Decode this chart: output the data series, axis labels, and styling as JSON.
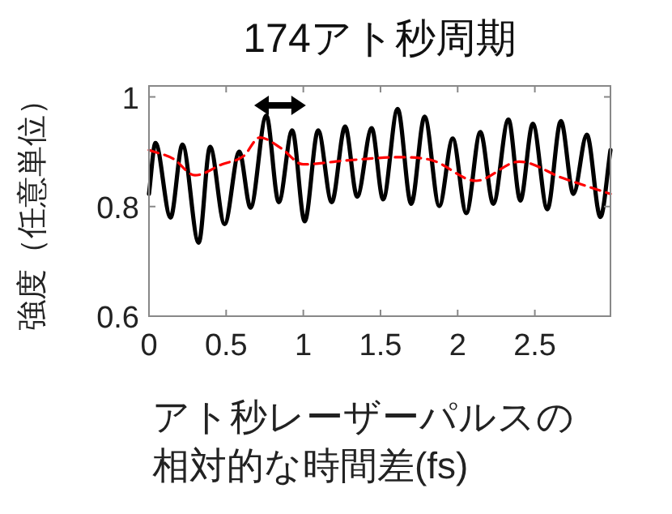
{
  "chart_data": {
    "type": "line",
    "title": "174アト秒周期",
    "xlabel": "アト秒レーザーパルスの相対的な時間差(fs)",
    "ylabel": "強度（任意単位）",
    "xlim": [
      0,
      2.99
    ],
    "ylim": [
      0.6,
      1.02
    ],
    "xticks": [
      0,
      0.5,
      1,
      1.5,
      2,
      2.5
    ],
    "yticks": [
      0.6,
      0.8,
      1
    ],
    "grid": false,
    "series": [
      {
        "color": "#000000",
        "line_style": "solid",
        "x": [
          0,
          0.042,
          0.14,
          0.217,
          0.322,
          0.396,
          0.49,
          0.585,
          0.658,
          0.76,
          0.841,
          0.928,
          1.009,
          1.096,
          1.184,
          1.271,
          1.349,
          1.443,
          1.517,
          1.611,
          1.699,
          1.786,
          1.881,
          1.968,
          2.056,
          2.147,
          2.231,
          2.329,
          2.406,
          2.487,
          2.581,
          2.669,
          2.75,
          2.837,
          2.925,
          2.99
        ],
        "values": [
          0.823,
          0.916,
          0.78,
          0.913,
          0.734,
          0.909,
          0.768,
          0.9,
          0.798,
          0.966,
          0.808,
          0.939,
          0.773,
          0.939,
          0.808,
          0.946,
          0.818,
          0.943,
          0.813,
          0.978,
          0.805,
          0.964,
          0.801,
          0.924,
          0.788,
          0.936,
          0.805,
          0.959,
          0.811,
          0.951,
          0.795,
          0.956,
          0.823,
          0.931,
          0.781,
          0.903
        ]
      },
      {
        "color": "#ff0000",
        "line_style": "dashed",
        "x": [
          0,
          0.158,
          0.298,
          0.473,
          0.613,
          0.718,
          0.858,
          0.998,
          1.278,
          1.629,
          1.839,
          2.119,
          2.399,
          2.68,
          2.99
        ],
        "values": [
          0.903,
          0.887,
          0.857,
          0.877,
          0.892,
          0.926,
          0.906,
          0.877,
          0.884,
          0.89,
          0.884,
          0.847,
          0.882,
          0.852,
          0.823
        ]
      }
    ]
  }
}
